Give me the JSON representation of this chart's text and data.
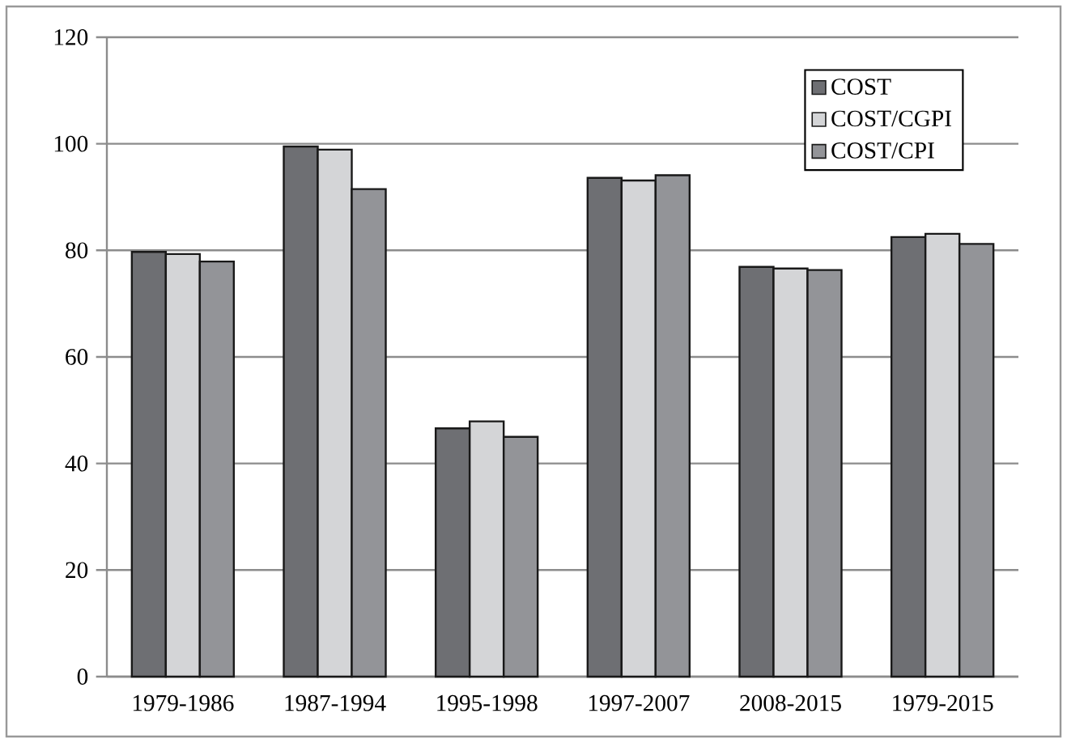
{
  "chart_data": {
    "type": "bar",
    "categories": [
      "1979-1986",
      "1987-1994",
      "1995-1998",
      "1997-2007",
      "2008-2015",
      "1979-2015"
    ],
    "series": [
      {
        "name": "COST",
        "color": "#6e6f73",
        "values": [
          79.7,
          99.5,
          46.6,
          93.6,
          76.9,
          82.5
        ]
      },
      {
        "name": "COST/CGPI",
        "color": "#d4d5d7",
        "values": [
          79.3,
          98.9,
          47.9,
          93.1,
          76.6,
          83.1
        ]
      },
      {
        "name": "COST/CPI",
        "color": "#939498",
        "values": [
          77.9,
          91.5,
          45.0,
          94.1,
          76.3,
          81.2
        ]
      }
    ],
    "ylim": [
      0,
      120
    ],
    "yticks": [
      0,
      20,
      40,
      60,
      80,
      100,
      120
    ],
    "grid": "y",
    "legend": "top right"
  }
}
